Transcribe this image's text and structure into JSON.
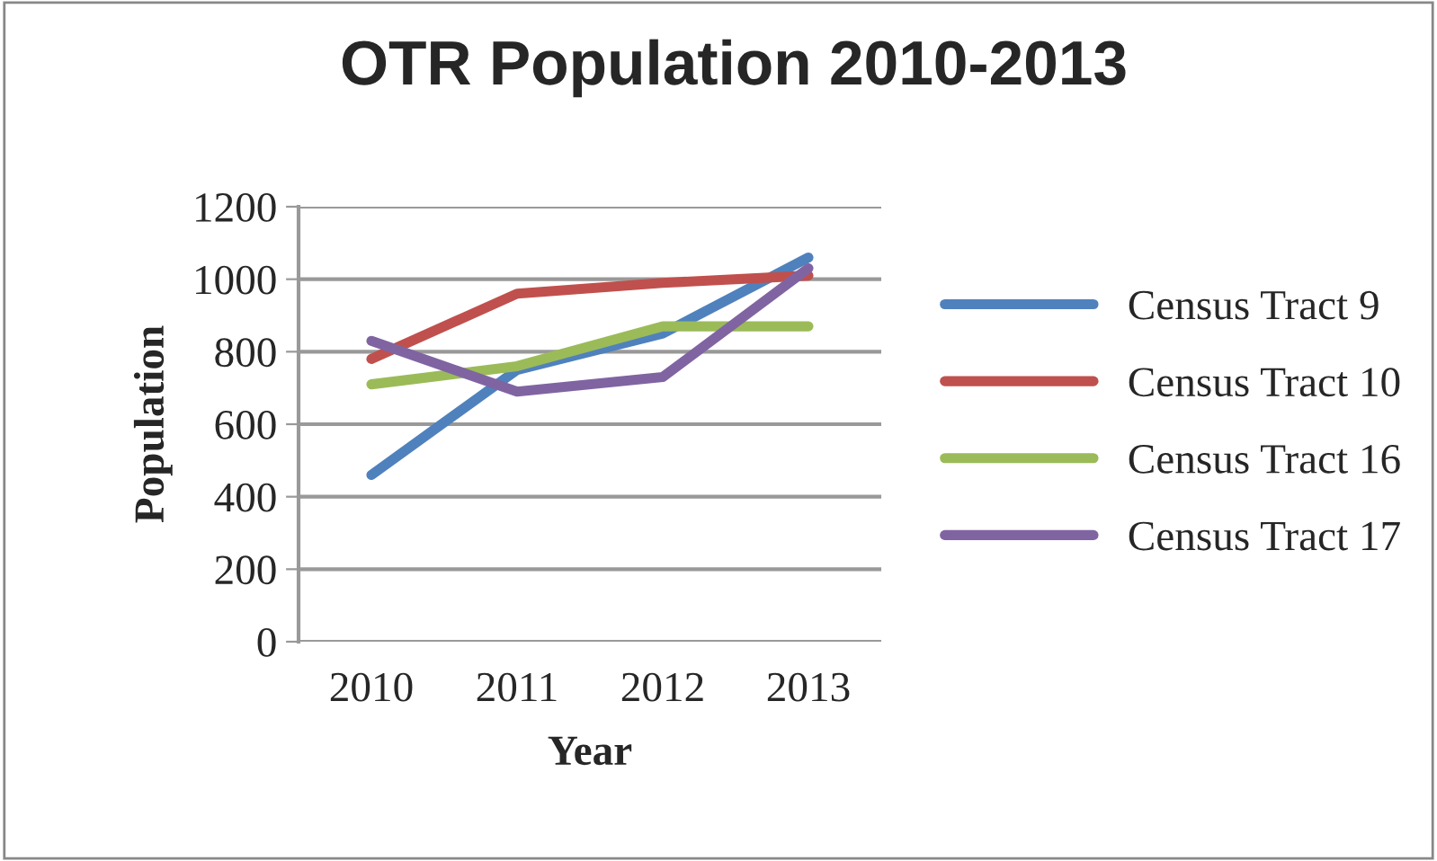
{
  "chart_data": {
    "type": "line",
    "title": "OTR Population 2010-2013",
    "xlabel": "Year",
    "ylabel": "Population",
    "categories": [
      "2010",
      "2011",
      "2012",
      "2013"
    ],
    "series": [
      {
        "name": "Census Tract 9",
        "color": "#4f81bd",
        "values": [
          460,
          750,
          850,
          1060
        ]
      },
      {
        "name": "Census Tract 10",
        "color": "#c0504d",
        "values": [
          780,
          960,
          990,
          1010
        ]
      },
      {
        "name": "Census Tract 16",
        "color": "#9bbb59",
        "values": [
          710,
          760,
          870,
          870
        ]
      },
      {
        "name": "Census Tract 17",
        "color": "#8064a2",
        "values": [
          830,
          690,
          730,
          1030
        ]
      }
    ],
    "ylim": [
      0,
      1200
    ],
    "yticks": [
      0,
      200,
      400,
      600,
      800,
      1000,
      1200
    ],
    "grid": "y",
    "legend": "right",
    "marker": "none",
    "line_style": "solid"
  }
}
